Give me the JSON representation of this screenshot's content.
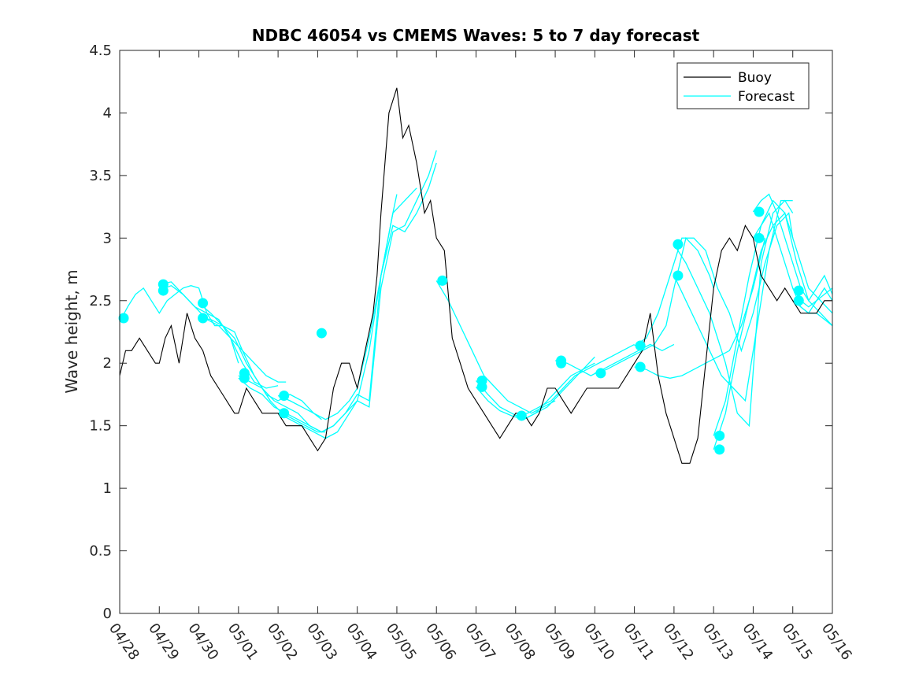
{
  "chart_data": {
    "type": "line",
    "title": "NDBC 46054 vs CMEMS Waves: 5 to 7 day forecast",
    "xlabel": "",
    "ylabel": "Wave height, m",
    "xlim": [
      0,
      18
    ],
    "ylim": [
      0,
      4.5
    ],
    "x_tick_labels": [
      "04/28",
      "04/29",
      "04/30",
      "05/01",
      "05/02",
      "05/03",
      "05/04",
      "05/05",
      "05/06",
      "05/07",
      "05/08",
      "05/09",
      "05/10",
      "05/11",
      "05/12",
      "05/13",
      "05/14",
      "05/15",
      "05/16"
    ],
    "y_ticks": [
      0,
      0.5,
      1,
      1.5,
      2,
      2.5,
      3,
      3.5,
      4,
      4.5
    ],
    "y_tick_labels": [
      "0",
      "0.5",
      "1",
      "1.5",
      "2",
      "2.5",
      "3",
      "3.5",
      "4",
      "4.5"
    ],
    "grid": false,
    "legend": {
      "position": "top-right",
      "entries": [
        "Buoy",
        "Forecast"
      ]
    },
    "colors": {
      "buoy": "#000000",
      "forecast": "#00FFFF",
      "marker": "#00FFFF"
    },
    "buoy": {
      "name": "Buoy",
      "x": [
        0,
        0.15,
        0.3,
        0.5,
        0.7,
        0.9,
        1.0,
        1.15,
        1.3,
        1.5,
        1.7,
        1.9,
        2.1,
        2.3,
        2.5,
        2.7,
        2.9,
        3.0,
        3.2,
        3.4,
        3.6,
        3.8,
        4.0,
        4.2,
        4.4,
        4.6,
        4.8,
        5.0,
        5.2,
        5.4,
        5.6,
        5.8,
        6.0,
        6.2,
        6.4,
        6.5,
        6.6,
        6.8,
        7.0,
        7.15,
        7.3,
        7.5,
        7.7,
        7.85,
        8.0,
        8.2,
        8.4,
        8.6,
        8.8,
        9.0,
        9.2,
        9.4,
        9.6,
        9.8,
        10.0,
        10.2,
        10.4,
        10.6,
        10.8,
        11.0,
        11.2,
        11.4,
        11.6,
        11.8,
        12.0,
        12.2,
        12.4,
        12.6,
        12.8,
        13.0,
        13.2,
        13.4,
        13.6,
        13.8,
        14.0,
        14.2,
        14.4,
        14.6,
        14.8,
        15.0,
        15.2,
        15.4,
        15.6,
        15.8,
        16.0,
        16.2,
        16.4,
        16.6,
        16.8,
        17.0,
        17.2,
        17.4,
        17.6,
        17.8,
        18.0
      ],
      "values": [
        1.9,
        2.1,
        2.1,
        2.2,
        2.1,
        2.0,
        2.0,
        2.2,
        2.3,
        2.0,
        2.4,
        2.2,
        2.1,
        1.9,
        1.8,
        1.7,
        1.6,
        1.6,
        1.8,
        1.7,
        1.6,
        1.6,
        1.6,
        1.5,
        1.5,
        1.5,
        1.4,
        1.3,
        1.4,
        1.8,
        2.0,
        2.0,
        1.8,
        2.1,
        2.4,
        2.7,
        3.2,
        4.0,
        4.2,
        3.8,
        3.9,
        3.6,
        3.2,
        3.3,
        3.0,
        2.9,
        2.2,
        2.0,
        1.8,
        1.7,
        1.6,
        1.5,
        1.4,
        1.5,
        1.6,
        1.6,
        1.5,
        1.6,
        1.8,
        1.8,
        1.7,
        1.6,
        1.7,
        1.8,
        1.8,
        1.8,
        1.8,
        1.8,
        1.9,
        2.0,
        2.1,
        2.4,
        1.9,
        1.6,
        1.4,
        1.2,
        1.2,
        1.4,
        2.0,
        2.6,
        2.9,
        3.0,
        2.9,
        3.1,
        3.0,
        2.7,
        2.6,
        2.5,
        2.6,
        2.5,
        2.4,
        2.4,
        2.4,
        2.5,
        2.5
      ]
    },
    "forecast_series": [
      {
        "x": [
          0.05,
          0.2,
          0.4,
          0.6,
          0.8,
          1.0,
          1.2,
          1.4,
          1.6,
          1.8,
          2.0,
          2.2,
          2.4,
          2.6,
          2.8,
          3.0
        ],
        "values": [
          2.36,
          2.45,
          2.55,
          2.6,
          2.5,
          2.4,
          2.5,
          2.55,
          2.6,
          2.62,
          2.6,
          2.4,
          2.3,
          2.3,
          2.2,
          2.0
        ]
      },
      {
        "x": [
          1.0,
          1.3,
          1.6,
          1.9,
          2.2,
          2.5,
          2.8,
          3.1,
          3.4,
          3.7,
          4.0,
          4.2
        ],
        "values": [
          2.58,
          2.62,
          2.55,
          2.45,
          2.35,
          2.3,
          2.2,
          2.1,
          2.0,
          1.9,
          1.85,
          1.85
        ]
      },
      {
        "x": [
          1.0,
          1.3,
          1.6,
          1.9,
          2.2,
          2.5,
          2.8,
          3.1,
          3.4,
          3.7,
          4.0
        ],
        "values": [
          2.63,
          2.65,
          2.55,
          2.45,
          2.4,
          2.35,
          2.2,
          2.0,
          1.85,
          1.8,
          1.82
        ]
      },
      {
        "x": [
          2.0,
          2.3,
          2.6,
          2.9,
          3.1,
          3.4,
          3.7,
          4.0,
          4.3,
          4.6,
          4.9,
          5.1
        ],
        "values": [
          2.48,
          2.4,
          2.3,
          2.25,
          2.1,
          1.9,
          1.75,
          1.7,
          1.75,
          1.7,
          1.6,
          1.55
        ]
      },
      {
        "x": [
          2.0,
          2.3,
          2.6,
          2.9,
          3.2,
          3.5,
          3.8,
          4.1,
          4.4,
          4.7,
          5.0,
          5.2
        ],
        "values": [
          2.36,
          2.35,
          2.3,
          2.2,
          2.0,
          1.85,
          1.7,
          1.6,
          1.55,
          1.5,
          1.45,
          1.45
        ]
      },
      {
        "x": [
          3.0,
          3.3,
          3.6,
          3.9,
          4.2,
          4.5,
          4.8,
          5.1,
          5.4,
          5.7,
          6.0,
          6.3,
          6.6,
          6.9,
          7.0
        ],
        "values": [
          1.9,
          1.85,
          1.8,
          1.7,
          1.65,
          1.6,
          1.5,
          1.45,
          1.5,
          1.6,
          1.75,
          1.7,
          2.7,
          3.2,
          3.35
        ]
      },
      {
        "x": [
          3.0,
          3.3,
          3.6,
          3.9,
          4.2,
          4.5,
          4.8,
          5.1,
          5.4,
          5.7,
          6.0,
          6.3,
          6.6,
          6.9,
          7.2,
          7.5,
          7.8,
          8.0
        ],
        "values": [
          1.88,
          1.8,
          1.75,
          1.65,
          1.6,
          1.55,
          1.5,
          1.45,
          1.5,
          1.6,
          1.7,
          1.65,
          2.6,
          3.05,
          3.1,
          3.3,
          3.5,
          3.7
        ]
      },
      {
        "x": [
          4.0,
          4.3,
          4.6,
          4.9,
          5.2,
          5.5,
          5.8,
          6.0,
          6.3,
          6.6,
          6.9,
          7.2,
          7.5,
          7.8,
          8.0
        ],
        "values": [
          1.74,
          1.7,
          1.65,
          1.6,
          1.55,
          1.6,
          1.7,
          1.8,
          2.2,
          2.7,
          3.1,
          3.05,
          3.2,
          3.4,
          3.6
        ]
      },
      {
        "x": [
          4.0,
          4.3,
          4.6,
          4.9,
          5.2,
          5.5,
          5.8,
          6.0,
          6.3,
          6.6,
          6.9,
          7.2,
          7.5
        ],
        "values": [
          1.6,
          1.55,
          1.5,
          1.45,
          1.4,
          1.45,
          1.6,
          1.7,
          2.1,
          2.7,
          3.2,
          3.3,
          3.4
        ]
      },
      {
        "x": [
          8.0,
          8.3,
          8.6,
          8.9,
          9.2,
          9.5,
          9.8,
          10.1,
          10.4,
          10.7,
          11.0
        ],
        "values": [
          2.66,
          2.5,
          2.3,
          2.1,
          1.9,
          1.8,
          1.7,
          1.65,
          1.6,
          1.65,
          1.7
        ]
      },
      {
        "x": [
          9.0,
          9.3,
          9.6,
          9.9,
          10.2,
          10.5,
          10.8,
          11.1,
          11.4,
          11.7,
          12.0
        ],
        "values": [
          1.86,
          1.75,
          1.65,
          1.6,
          1.55,
          1.6,
          1.65,
          1.75,
          1.85,
          1.95,
          2.0
        ]
      },
      {
        "x": [
          9.0,
          9.3,
          9.6,
          9.9,
          10.2,
          10.5,
          10.8,
          11.1,
          11.4,
          11.7,
          12.0
        ],
        "values": [
          1.81,
          1.7,
          1.62,
          1.58,
          1.55,
          1.6,
          1.7,
          1.8,
          1.9,
          1.95,
          2.05
        ]
      },
      {
        "x": [
          10.0,
          10.3,
          10.6,
          10.9,
          11.2,
          11.5,
          11.8,
          12.1,
          12.4,
          12.7,
          13.0
        ],
        "values": [
          1.58,
          1.6,
          1.65,
          1.7,
          1.8,
          1.9,
          1.95,
          2.0,
          2.05,
          2.1,
          2.15
        ]
      },
      {
        "x": [
          11.0,
          11.3,
          11.6,
          11.9,
          12.2,
          12.5,
          12.8,
          13.1,
          13.4,
          13.7,
          14.0
        ],
        "values": [
          2.02,
          2.0,
          1.95,
          1.9,
          1.95,
          2.0,
          2.05,
          2.1,
          2.15,
          2.1,
          2.15
        ]
      },
      {
        "x": [
          12.0,
          12.3,
          12.6,
          12.9,
          13.2,
          13.5,
          13.8,
          14.0,
          14.3,
          14.6,
          14.9,
          15.0
        ],
        "values": [
          1.92,
          1.95,
          2.0,
          2.05,
          2.1,
          2.15,
          2.3,
          2.6,
          3.0,
          2.9,
          2.7,
          2.6
        ]
      },
      {
        "x": [
          13.0,
          13.3,
          13.6,
          13.9,
          14.2,
          14.5,
          14.8,
          15.1,
          15.4,
          15.7,
          16.0,
          16.3
        ],
        "values": [
          1.97,
          1.95,
          1.9,
          1.88,
          1.9,
          1.95,
          2.0,
          2.05,
          2.1,
          2.3,
          2.6,
          3.0
        ]
      },
      {
        "x": [
          13.0,
          13.3,
          13.6,
          13.9,
          14.2,
          14.5,
          14.8,
          15.1,
          15.4,
          15.7,
          16.0,
          16.3,
          16.6,
          16.9,
          17.0
        ],
        "values": [
          2.14,
          2.2,
          2.4,
          2.7,
          3.0,
          3.0,
          2.9,
          2.6,
          2.4,
          2.1,
          2.4,
          2.8,
          3.1,
          3.2,
          3.0
        ]
      },
      {
        "x": [
          14.0,
          14.3,
          14.6,
          14.9,
          15.0,
          15.3,
          15.6,
          15.9,
          16.2,
          16.5,
          16.8,
          17.0
        ],
        "values": [
          2.95,
          2.8,
          2.6,
          2.4,
          2.3,
          2.0,
          1.6,
          1.5,
          2.8,
          3.2,
          3.3,
          3.2
        ]
      },
      {
        "x": [
          14.0,
          14.3,
          14.6,
          14.9,
          15.2,
          15.5,
          15.8,
          16.1,
          16.4,
          16.7,
          17.0
        ],
        "values": [
          2.7,
          2.5,
          2.3,
          2.1,
          1.9,
          1.8,
          1.7,
          2.3,
          2.9,
          3.3,
          3.3
        ]
      },
      {
        "x": [
          15.0,
          15.3,
          15.6,
          15.9,
          16.2,
          16.5,
          16.8,
          17.1,
          17.4,
          17.7,
          18.0
        ],
        "values": [
          1.42,
          1.7,
          2.2,
          2.7,
          3.1,
          3.3,
          3.2,
          2.9,
          2.6,
          2.5,
          2.4
        ]
      },
      {
        "x": [
          15.0,
          15.3,
          15.6,
          15.9,
          16.2,
          16.5,
          16.8,
          17.1,
          17.4,
          17.7,
          18.0
        ],
        "values": [
          1.31,
          1.6,
          2.1,
          2.5,
          2.9,
          3.1,
          3.2,
          2.8,
          2.5,
          2.4,
          2.3
        ]
      },
      {
        "x": [
          16.0,
          16.2,
          16.4,
          16.6,
          16.8,
          17.0,
          17.2,
          17.4,
          17.6,
          17.8,
          18.0
        ],
        "values": [
          3.21,
          3.3,
          3.35,
          3.2,
          3.0,
          2.8,
          2.6,
          2.5,
          2.6,
          2.7,
          2.55
        ]
      },
      {
        "x": [
          16.0,
          16.2,
          16.4,
          16.6,
          16.8,
          17.0,
          17.2,
          17.4,
          17.6,
          17.8,
          18.0
        ],
        "values": [
          3.0,
          3.1,
          3.2,
          3.0,
          2.8,
          2.6,
          2.45,
          2.4,
          2.5,
          2.55,
          2.6
        ]
      },
      {
        "x": [
          17.0,
          17.2,
          17.4,
          17.6,
          17.8,
          18.0
        ],
        "values": [
          2.6,
          2.5,
          2.45,
          2.5,
          2.6,
          2.5
        ]
      },
      {
        "x": [
          17.0,
          17.2,
          17.4,
          17.6,
          17.8,
          18.0
        ],
        "values": [
          2.5,
          2.45,
          2.4,
          2.4,
          2.35,
          2.3
        ]
      }
    ],
    "markers": {
      "x": [
        0.1,
        1.1,
        1.1,
        2.1,
        2.1,
        3.15,
        3.15,
        4.15,
        4.15,
        5.1,
        8.15,
        9.15,
        9.15,
        10.15,
        11.15,
        11.15,
        12.15,
        13.15,
        13.15,
        14.1,
        14.1,
        15.15,
        15.15,
        16.15,
        16.15,
        17.15,
        17.15
      ],
      "values": [
        2.36,
        2.63,
        2.58,
        2.48,
        2.36,
        1.92,
        1.88,
        1.74,
        1.6,
        2.24,
        2.66,
        1.86,
        1.81,
        1.58,
        2.02,
        2.0,
        1.92,
        2.14,
        1.97,
        2.95,
        2.7,
        1.42,
        1.31,
        3.21,
        3.0,
        2.58,
        2.5
      ]
    }
  }
}
